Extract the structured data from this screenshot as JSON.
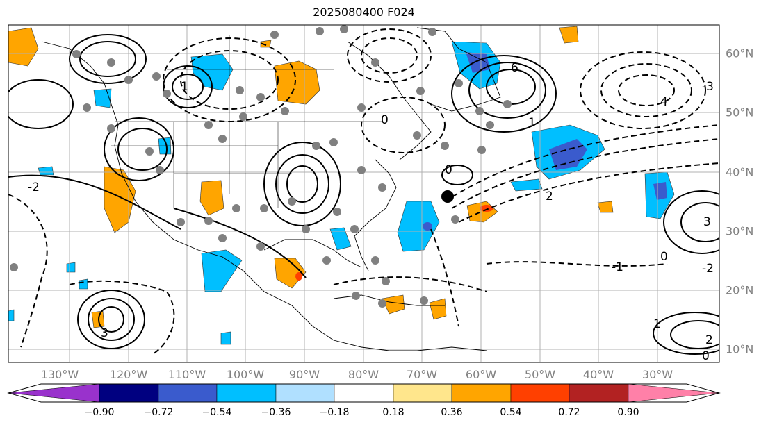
{
  "title": "2025080400 F024",
  "lon_labels": [
    "130°W",
    "120°W",
    "110°W",
    "100°W",
    "90°W",
    "80°W",
    "70°W",
    "60°W",
    "50°W",
    "40°W",
    "30°W"
  ],
  "lat_labels": [
    "60°N",
    "50°N",
    "40°N",
    "30°N",
    "20°N",
    "10°N"
  ],
  "colorbar": {
    "ticks": [
      "−0.90",
      "−0.72",
      "−0.54",
      "−0.36",
      "−0.18",
      "0.18",
      "0.36",
      "0.54",
      "0.72",
      "0.90"
    ],
    "colors": [
      "#9932cc",
      "#000080",
      "#3a5bcd",
      "#00bfff",
      "#b0e0ff",
      "#ffffff",
      "#ffe68c",
      "#ffa500",
      "#ff4000",
      "#b22222",
      "#ff80a8"
    ]
  },
  "contour_labels": [
    "0",
    "1",
    "2",
    "3",
    "-1",
    "-2",
    "-3",
    "4",
    "6"
  ],
  "marker": "storm-center-dot"
}
